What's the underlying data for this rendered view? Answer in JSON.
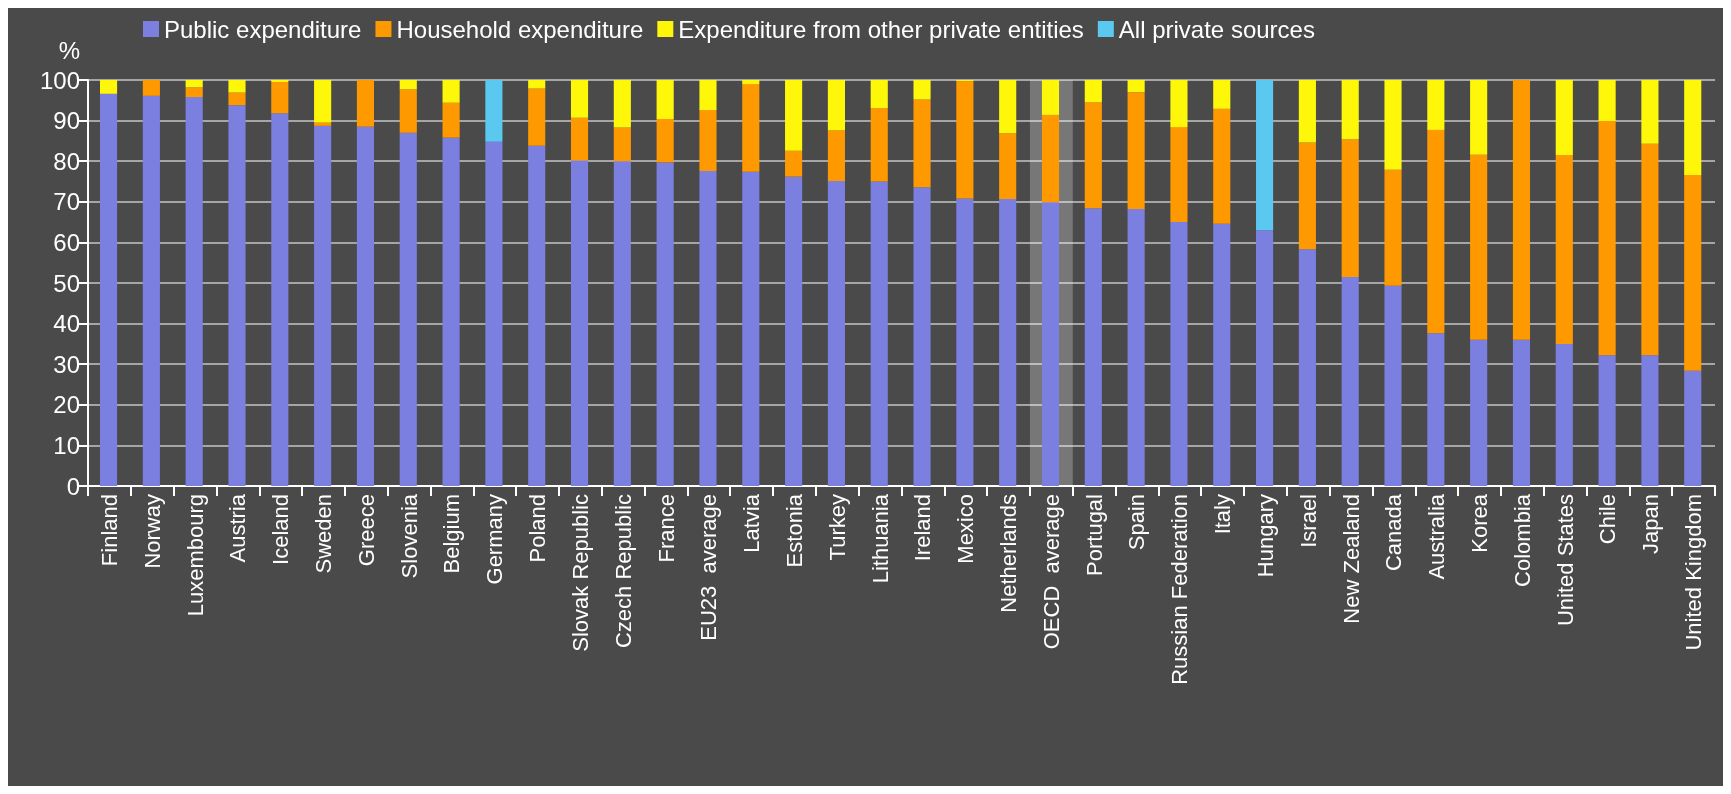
{
  "chart_data": {
    "type": "bar",
    "stacked": true,
    "ylabel": "%",
    "categories": [
      "Finland",
      "Norway",
      "Luxembourg",
      "Austria",
      "Iceland",
      "Sweden",
      "Greece",
      "Slovenia",
      "Belgium",
      "Germany",
      "Poland",
      "Slovak Republic",
      "Czech Republic",
      "France",
      "EU23  average",
      "Latvia",
      "Estonia",
      "Turkey",
      "Lithuania",
      "Ireland",
      "Mexico",
      "Netherlands",
      "OECD  average",
      "Portugal",
      "Spain",
      "Russian Federation",
      "Italy",
      "Hungary",
      "Israel",
      "New Zealand",
      "Canada",
      "Australia",
      "Korea",
      "Colombia",
      "United States",
      "Chile",
      "Japan",
      "United Kingdom"
    ],
    "series": [
      {
        "name": "Public expenditure",
        "color": "#7b7fdf",
        "values": [
          96.6,
          96.1,
          95.8,
          93.8,
          91.8,
          88.7,
          88.5,
          87.0,
          85.8,
          84.8,
          83.8,
          80.2,
          80.0,
          79.7,
          77.6,
          77.4,
          76.2,
          75.1,
          75.0,
          73.6,
          70.8,
          70.7,
          69.9,
          68.4,
          68.2,
          65.0,
          64.6,
          63.0,
          58.3,
          51.5,
          49.3,
          37.6,
          36.0,
          36.0,
          35.0,
          32.2,
          32.2,
          28.4
        ]
      },
      {
        "name": "Household expenditure",
        "color": "#ff9900",
        "values": [
          null,
          3.9,
          2.4,
          3.1,
          7.7,
          0.8,
          11.5,
          10.7,
          8.6,
          null,
          14.1,
          10.5,
          8.3,
          10.7,
          15.0,
          21.6,
          6.4,
          12.5,
          18.1,
          21.6,
          28.9,
          16.2,
          21.5,
          26.1,
          28.8,
          23.4,
          28.3,
          null,
          26.3,
          33.9,
          28.6,
          50.1,
          45.6,
          64.0,
          46.5,
          57.7,
          52.1,
          48.2
        ]
      },
      {
        "name": "Expenditure from other private entities",
        "color": "#fff70a",
        "values": [
          3.4,
          null,
          1.8,
          3.1,
          0.5,
          10.5,
          null,
          2.3,
          5.6,
          null,
          2.1,
          9.3,
          11.7,
          9.6,
          7.4,
          1.0,
          17.4,
          12.4,
          6.9,
          4.8,
          0.3,
          13.1,
          8.6,
          5.5,
          3.0,
          11.6,
          7.1,
          null,
          15.4,
          14.6,
          22.1,
          12.3,
          18.4,
          null,
          18.5,
          10.1,
          15.7,
          23.4
        ]
      },
      {
        "name": "All private sources",
        "color": "#5bc8f0",
        "values": [
          null,
          null,
          null,
          null,
          null,
          null,
          null,
          null,
          null,
          15.2,
          null,
          null,
          null,
          null,
          null,
          null,
          null,
          null,
          null,
          null,
          null,
          null,
          null,
          null,
          null,
          null,
          null,
          37.0,
          null,
          null,
          null,
          null,
          null,
          null,
          null,
          null,
          null,
          null
        ]
      }
    ],
    "ylim": [
      0,
      100
    ],
    "yticks": [
      0,
      10,
      20,
      30,
      40,
      50,
      60,
      70,
      80,
      90,
      100
    ],
    "grid": "y",
    "legend": "top",
    "bands": [
      {
        "axis": "x",
        "from": "OECD  average",
        "to": "OECD  average",
        "color": "#ffffff"
      }
    ]
  }
}
